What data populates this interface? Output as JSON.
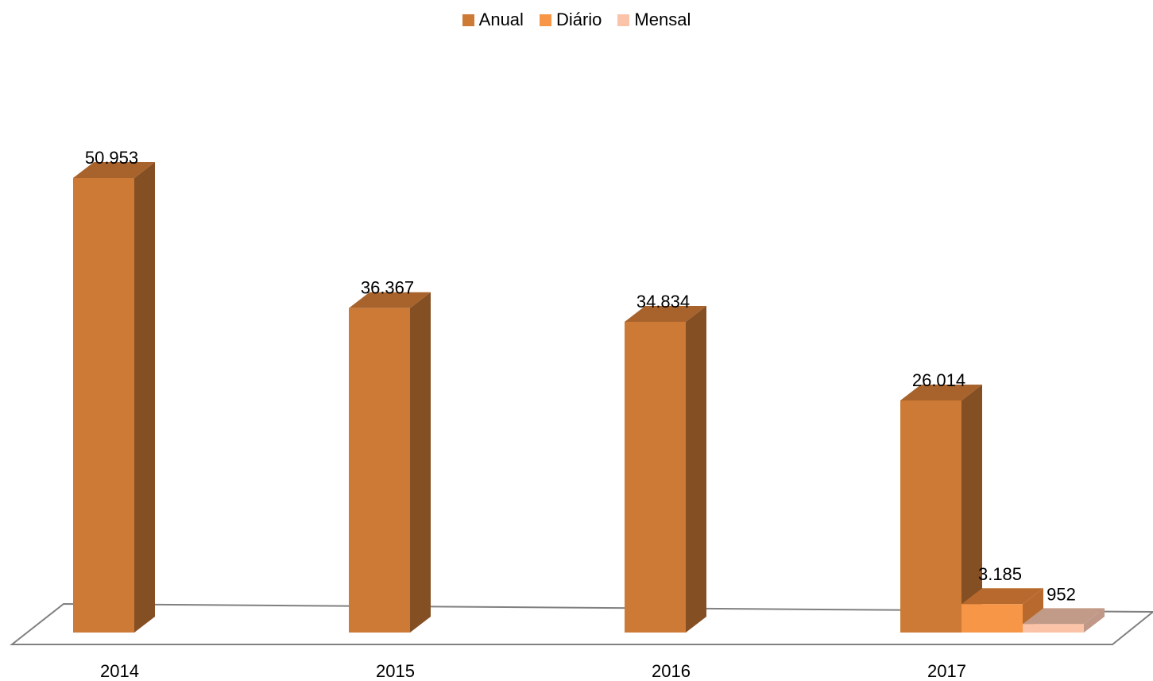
{
  "chart_data": {
    "type": "bar",
    "categories": [
      "2014",
      "2015",
      "2016",
      "2017"
    ],
    "series": [
      {
        "name": "Anual",
        "values": [
          50953,
          36367,
          34834,
          26014
        ],
        "labels": [
          "50.953",
          "36.367",
          "34.834",
          "26.014"
        ],
        "color": "#CC7A36"
      },
      {
        "name": "Diário",
        "values": [
          null,
          null,
          null,
          3185
        ],
        "labels": [
          "",
          "",
          "",
          "3.185"
        ],
        "color": "#F79646"
      },
      {
        "name": "Mensal",
        "values": [
          null,
          null,
          null,
          952
        ],
        "labels": [
          "",
          "",
          "",
          "952"
        ],
        "color": "#FBC4A8"
      }
    ],
    "legend_position": "top",
    "style": "3d-clustered-column",
    "grid": false
  },
  "colors": {
    "anual_side": "#854F24",
    "anual_top": "#A8632C",
    "diario_side": "#B86A2E",
    "diario_top": "#B86A2E",
    "mensal_side": "#C09888",
    "mensal_top": "#C29A88",
    "floor_stroke": "#808080"
  }
}
